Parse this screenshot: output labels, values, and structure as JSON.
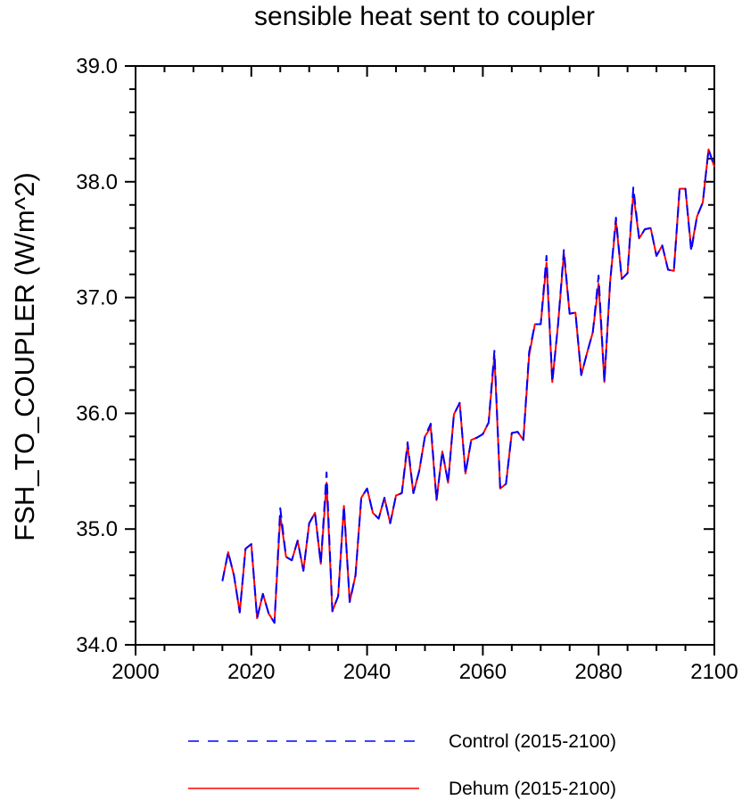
{
  "chart_data": {
    "type": "line",
    "title": "sensible heat sent to coupler",
    "xlabel": "",
    "ylabel": "FSH_TO_COUPLER  (W/m^2)",
    "xlim": [
      2000,
      2100
    ],
    "ylim": [
      34.0,
      39.0
    ],
    "xticks": [
      "2000",
      "2020",
      "2040",
      "2060",
      "2080",
      "2100"
    ],
    "yticks": [
      "34.0",
      "35.0",
      "36.0",
      "37.0",
      "38.0",
      "39.0"
    ],
    "grid": false,
    "legend_position": "bottom",
    "x": [
      2015,
      2016,
      2017,
      2018,
      2019,
      2020,
      2021,
      2022,
      2023,
      2024,
      2025,
      2026,
      2027,
      2028,
      2029,
      2030,
      2031,
      2032,
      2033,
      2034,
      2035,
      2036,
      2037,
      2038,
      2039,
      2040,
      2041,
      2042,
      2043,
      2044,
      2045,
      2046,
      2047,
      2048,
      2049,
      2050,
      2051,
      2052,
      2053,
      2054,
      2055,
      2056,
      2057,
      2058,
      2059,
      2060,
      2061,
      2062,
      2063,
      2064,
      2065,
      2066,
      2067,
      2068,
      2069,
      2070,
      2071,
      2072,
      2073,
      2074,
      2075,
      2076,
      2077,
      2078,
      2079,
      2080,
      2081,
      2082,
      2083,
      2084,
      2085,
      2086,
      2087,
      2088,
      2089,
      2090,
      2091,
      2092,
      2093,
      2094,
      2095,
      2096,
      2097,
      2098,
      2099,
      2100
    ],
    "series": [
      {
        "name": "Control (2015-2100)",
        "color": "#0000ff",
        "dash": "dashed",
        "values": [
          34.55,
          34.8,
          34.6,
          34.28,
          34.83,
          34.87,
          34.23,
          34.44,
          34.27,
          34.19,
          35.18,
          34.76,
          34.73,
          34.9,
          34.64,
          35.05,
          35.14,
          34.7,
          35.49,
          34.29,
          34.42,
          35.2,
          34.37,
          34.6,
          35.27,
          35.35,
          35.14,
          35.09,
          35.27,
          35.05,
          35.29,
          35.31,
          35.75,
          35.31,
          35.5,
          35.8,
          35.91,
          35.25,
          35.67,
          35.4,
          35.99,
          36.09,
          35.48,
          35.77,
          35.79,
          35.82,
          35.92,
          36.54,
          35.35,
          35.39,
          35.83,
          35.84,
          35.77,
          36.53,
          36.77,
          36.77,
          37.36,
          36.27,
          36.77,
          37.41,
          36.86,
          36.87,
          36.33,
          36.52,
          36.7,
          37.19,
          36.27,
          37.14,
          37.69,
          37.16,
          37.21,
          37.95,
          37.51,
          37.59,
          37.6,
          37.36,
          37.45,
          37.24,
          37.23,
          37.94,
          37.94,
          37.4,
          37.7,
          37.82,
          38.28,
          38.13
        ]
      },
      {
        "name": "Dehum (2015-2100)",
        "color": "#ff0000",
        "dash": "solid",
        "values": [
          34.55,
          34.8,
          34.6,
          34.28,
          34.83,
          34.87,
          34.23,
          34.44,
          34.27,
          34.19,
          35.12,
          34.76,
          34.73,
          34.9,
          34.64,
          35.05,
          35.14,
          34.7,
          35.4,
          34.29,
          34.42,
          35.2,
          34.37,
          34.6,
          35.27,
          35.35,
          35.14,
          35.09,
          35.27,
          35.05,
          35.29,
          35.31,
          35.72,
          35.31,
          35.5,
          35.8,
          35.88,
          35.25,
          35.67,
          35.4,
          35.99,
          36.09,
          35.48,
          35.77,
          35.79,
          35.82,
          35.92,
          36.5,
          35.35,
          35.39,
          35.83,
          35.84,
          35.77,
          36.5,
          36.77,
          36.77,
          37.3,
          36.27,
          36.77,
          37.38,
          36.86,
          36.87,
          36.33,
          36.52,
          36.7,
          37.12,
          36.27,
          37.14,
          37.66,
          37.16,
          37.21,
          37.9,
          37.51,
          37.59,
          37.6,
          37.36,
          37.45,
          37.24,
          37.23,
          37.94,
          37.94,
          37.42,
          37.7,
          37.82,
          38.28,
          38.13
        ]
      }
    ]
  }
}
